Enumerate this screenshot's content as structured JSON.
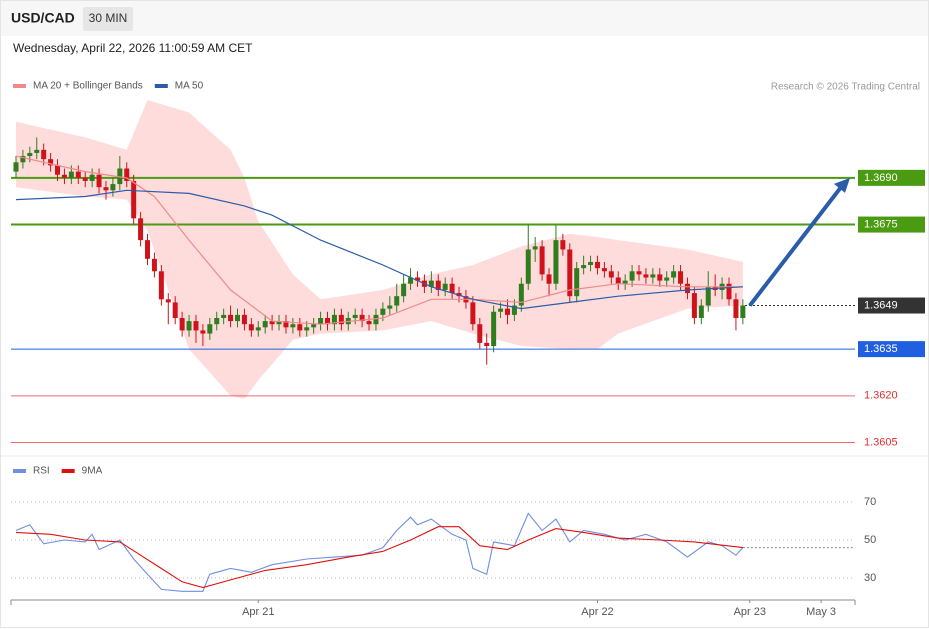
{
  "header": {
    "symbol": "USD/CAD",
    "interval": "30 MIN",
    "timestamp": "Wednesday, April 22, 2026 11:00:59 AM CET"
  },
  "chart_data": [
    {
      "type": "candlestick",
      "credit": "Research © 2026 Trading Central",
      "up_color": "#2f7d1e",
      "down_color": "#d0121b",
      "open": [
        1.3692,
        1.3695,
        1.3697,
        1.3698,
        1.3699,
        1.3696,
        1.3694,
        1.3691,
        1.369,
        1.3692,
        1.369,
        1.3689,
        1.3691,
        1.3687,
        1.3686,
        1.3688,
        1.3693,
        1.3689,
        1.3677,
        1.367,
        1.3664,
        1.366,
        1.3651,
        1.365,
        1.3645,
        1.3641,
        1.3644,
        1.3641,
        1.364,
        1.3643,
        1.3645,
        1.3646,
        1.3644,
        1.3646,
        1.3643,
        1.3641,
        1.3642,
        1.3644,
        1.3643,
        1.3644,
        1.3642,
        1.3643,
        1.3641,
        1.3642,
        1.3643,
        1.3645,
        1.3643,
        1.3646,
        1.3643,
        1.3645,
        1.3646,
        1.3644,
        1.3643,
        1.3646,
        1.3648,
        1.3649,
        1.3652,
        1.3656,
        1.3658,
        1.3657,
        1.3655,
        1.3657,
        1.3654,
        1.3656,
        1.3653,
        1.3652,
        1.365,
        1.3643,
        1.3637,
        1.3636,
        1.3647,
        1.3648,
        1.3646,
        1.3649,
        1.3656,
        1.3667,
        1.3668,
        1.3659,
        1.3656,
        1.367,
        1.3667,
        1.3652,
        1.3661,
        1.3662,
        1.3663,
        1.3661,
        1.366,
        1.3658,
        1.3656,
        1.3657,
        1.366,
        1.3659,
        1.3658,
        1.3659,
        1.3657,
        1.3658,
        1.366,
        1.3656,
        1.3653,
        1.3645,
        1.3649,
        1.3655,
        1.3654,
        1.3656,
        1.3651,
        1.3645
      ],
      "high": [
        1.3697,
        1.3699,
        1.37,
        1.3703,
        1.3701,
        1.3698,
        1.3696,
        1.3693,
        1.3694,
        1.3694,
        1.3692,
        1.3693,
        1.3693,
        1.3689,
        1.369,
        1.3697,
        1.3695,
        1.3691,
        1.3679,
        1.3672,
        1.3666,
        1.3662,
        1.3653,
        1.3652,
        1.3647,
        1.3646,
        1.3646,
        1.3643,
        1.3645,
        1.3647,
        1.3648,
        1.3649,
        1.3648,
        1.3648,
        1.3645,
        1.3644,
        1.3646,
        1.3646,
        1.3646,
        1.3646,
        1.3645,
        1.3645,
        1.3644,
        1.3645,
        1.3647,
        1.3647,
        1.3648,
        1.3648,
        1.3647,
        1.3648,
        1.3648,
        1.3646,
        1.3648,
        1.365,
        1.3652,
        1.3656,
        1.3659,
        1.3661,
        1.366,
        1.3659,
        1.366,
        1.3659,
        1.3658,
        1.3658,
        1.3655,
        1.3654,
        1.3652,
        1.3645,
        1.364,
        1.3649,
        1.365,
        1.3651,
        1.3651,
        1.3658,
        1.3675,
        1.3671,
        1.367,
        1.3661,
        1.3675,
        1.3672,
        1.3669,
        1.3663,
        1.3665,
        1.3665,
        1.3665,
        1.3663,
        1.3662,
        1.366,
        1.3659,
        1.3662,
        1.3662,
        1.3661,
        1.3661,
        1.3661,
        1.366,
        1.3662,
        1.3662,
        1.3658,
        1.3655,
        1.3651,
        1.366,
        1.3659,
        1.3658,
        1.3658,
        1.3653,
        1.3651
      ],
      "low": [
        1.369,
        1.3693,
        1.3695,
        1.3696,
        1.3694,
        1.3692,
        1.3689,
        1.3688,
        1.3688,
        1.3688,
        1.3687,
        1.3687,
        1.3685,
        1.3683,
        1.3684,
        1.3686,
        1.3687,
        1.3675,
        1.3668,
        1.3662,
        1.3658,
        1.3649,
        1.3643,
        1.3643,
        1.3639,
        1.3639,
        1.3637,
        1.3636,
        1.3638,
        1.3641,
        1.3643,
        1.3642,
        1.3642,
        1.3641,
        1.3639,
        1.3639,
        1.364,
        1.3641,
        1.3641,
        1.364,
        1.364,
        1.3639,
        1.3639,
        1.364,
        1.3641,
        1.3641,
        1.3641,
        1.3641,
        1.3641,
        1.3643,
        1.3642,
        1.3641,
        1.3641,
        1.3644,
        1.3646,
        1.3647,
        1.365,
        1.3654,
        1.3655,
        1.3653,
        1.3653,
        1.3652,
        1.3652,
        1.3651,
        1.365,
        1.3648,
        1.3641,
        1.3635,
        1.363,
        1.3634,
        1.3645,
        1.3643,
        1.3644,
        1.3647,
        1.3654,
        1.3663,
        1.3657,
        1.3652,
        1.3654,
        1.3665,
        1.365,
        1.365,
        1.3659,
        1.366,
        1.3659,
        1.3658,
        1.3656,
        1.3654,
        1.3654,
        1.3655,
        1.3657,
        1.3656,
        1.3656,
        1.3655,
        1.3655,
        1.3656,
        1.3654,
        1.3651,
        1.3643,
        1.3643,
        1.3647,
        1.3652,
        1.3651,
        1.3649,
        1.3641,
        1.3643
      ],
      "close": [
        1.3695,
        1.3697,
        1.3698,
        1.3699,
        1.3696,
        1.3694,
        1.3691,
        1.369,
        1.3692,
        1.369,
        1.3689,
        1.3691,
        1.3687,
        1.3686,
        1.3688,
        1.3693,
        1.3689,
        1.3677,
        1.367,
        1.3664,
        1.366,
        1.3651,
        1.365,
        1.3645,
        1.3641,
        1.3644,
        1.3641,
        1.364,
        1.3643,
        1.3645,
        1.3646,
        1.3644,
        1.3646,
        1.3643,
        1.3641,
        1.3642,
        1.3644,
        1.3643,
        1.3644,
        1.3642,
        1.3643,
        1.3641,
        1.3642,
        1.3643,
        1.3645,
        1.3643,
        1.3646,
        1.3643,
        1.3645,
        1.3646,
        1.3644,
        1.3643,
        1.3646,
        1.3648,
        1.3649,
        1.3652,
        1.3656,
        1.3658,
        1.3657,
        1.3655,
        1.3657,
        1.3654,
        1.3656,
        1.3653,
        1.3652,
        1.365,
        1.3643,
        1.3637,
        1.3636,
        1.3647,
        1.3648,
        1.3646,
        1.3649,
        1.3656,
        1.3667,
        1.3668,
        1.3659,
        1.3656,
        1.367,
        1.3667,
        1.3652,
        1.3661,
        1.3662,
        1.3663,
        1.3661,
        1.366,
        1.3658,
        1.3656,
        1.3657,
        1.366,
        1.3659,
        1.3658,
        1.3659,
        1.3657,
        1.3658,
        1.366,
        1.3656,
        1.3653,
        1.3645,
        1.3649,
        1.3655,
        1.3654,
        1.3656,
        1.3651,
        1.3645,
        1.3649
      ],
      "bands": {
        "color": "#ffdcdc",
        "x": [
          0,
          10,
          16,
          19,
          25,
          31,
          33,
          35,
          40,
          44,
          53,
          60,
          66,
          73,
          80,
          84,
          87,
          97,
          105
        ],
        "upper": [
          1.3708,
          1.3703,
          1.3699,
          1.3715,
          1.3711,
          1.3699,
          1.369,
          1.3676,
          1.3659,
          1.3651,
          1.3654,
          1.3659,
          1.3662,
          1.3668,
          1.3672,
          1.3671,
          1.367,
          1.3667,
          1.3663
        ],
        "lower": [
          1.3687,
          1.3684,
          1.3683,
          1.3673,
          1.3635,
          1.362,
          1.3619,
          1.3625,
          1.3638,
          1.364,
          1.3641,
          1.3644,
          1.364,
          1.3636,
          1.3635,
          1.3635,
          1.364,
          1.3648,
          1.3649
        ]
      },
      "series": [
        {
          "name": "MA 20 + Bollinger Bands",
          "color": "#f08a8a",
          "x": [
            0,
            10,
            16,
            20,
            25,
            31,
            37,
            44,
            53,
            60,
            66,
            73,
            80,
            87,
            97,
            105
          ],
          "values": [
            1.3697,
            1.3692,
            1.369,
            1.3684,
            1.367,
            1.3654,
            1.3644,
            1.3643,
            1.3645,
            1.3651,
            1.3651,
            1.365,
            1.3654,
            1.3656,
            1.3655,
            1.3655
          ]
        },
        {
          "name": "MA 50",
          "color": "#2a5caa",
          "x": [
            0,
            10,
            16,
            25,
            33,
            37,
            44,
            53,
            60,
            66,
            73,
            80,
            87,
            97,
            105
          ],
          "values": [
            1.3683,
            1.3684,
            1.3686,
            1.3685,
            1.3681,
            1.3678,
            1.367,
            1.3662,
            1.3655,
            1.3651,
            1.3648,
            1.365,
            1.3652,
            1.3654,
            1.3655
          ]
        }
      ],
      "levels": [
        {
          "value": 1.369,
          "label": "1.3690",
          "color": "#4a9a12",
          "style": "solid-boxed"
        },
        {
          "value": 1.3675,
          "label": "1.3675",
          "color": "#4a9a12",
          "style": "solid-boxed"
        },
        {
          "value": 1.3649,
          "label": "1.3649",
          "color": "#333333",
          "style": "dotted-boxed"
        },
        {
          "value": 1.3635,
          "label": "1.3635",
          "color": "#2060e0",
          "style": "solid-boxed"
        },
        {
          "value": 1.362,
          "label": "1.3620",
          "color": "#e03030",
          "style": "solid"
        },
        {
          "value": 1.3605,
          "label": "1.3605",
          "color": "#e03030",
          "style": "solid"
        }
      ],
      "ylim": [
        1.3601,
        1.3715
      ],
      "xlim": [
        -0.72,
        121.2
      ]
    },
    {
      "type": "line",
      "series": [
        {
          "name": "RSI",
          "color": "#6f8fdf",
          "x": [
            0,
            2,
            4,
            7,
            10,
            11,
            12,
            15,
            17,
            19,
            21,
            24,
            27,
            28,
            31,
            34,
            37,
            42,
            46,
            50,
            53,
            55,
            57,
            58,
            60,
            63,
            65,
            66,
            68,
            69,
            72,
            74,
            76,
            78,
            80,
            82,
            85,
            88,
            91,
            94,
            97,
            100,
            102,
            104,
            105
          ],
          "values": [
            55,
            58,
            48,
            50,
            49,
            53,
            45,
            50,
            40,
            32,
            24,
            23,
            23,
            32,
            35,
            33,
            37,
            40,
            41,
            42,
            46,
            55,
            62,
            58,
            61,
            53,
            50,
            35,
            32,
            49,
            47,
            64,
            55,
            61,
            49,
            55,
            53,
            50,
            53,
            49,
            41,
            49,
            47,
            42,
            46
          ]
        },
        {
          "name": "9MA",
          "color": "#e01010",
          "x": [
            0,
            5,
            10,
            15,
            18,
            21,
            24,
            27,
            31,
            36,
            42,
            48,
            53,
            57,
            61,
            64,
            67,
            71,
            74,
            78,
            82,
            87,
            93,
            98,
            105
          ],
          "values": [
            54,
            53,
            50,
            49,
            42,
            35,
            28,
            25,
            29,
            34,
            37,
            41,
            44,
            50,
            57,
            57,
            47,
            45,
            50,
            56,
            54,
            51,
            50,
            49,
            46
          ]
        }
      ],
      "ylim": [
        19.5,
        91
      ],
      "yticks": [
        30,
        50,
        70
      ],
      "grid": true,
      "xlim": [
        -0.72,
        121.2
      ],
      "xticks": [
        {
          "value": 35,
          "label": "Apr 21"
        },
        {
          "value": 84,
          "label": "Apr 22"
        },
        {
          "value": 106,
          "label": "Apr 23"
        },
        {
          "value": 116.3,
          "label": "May 3"
        }
      ]
    }
  ]
}
